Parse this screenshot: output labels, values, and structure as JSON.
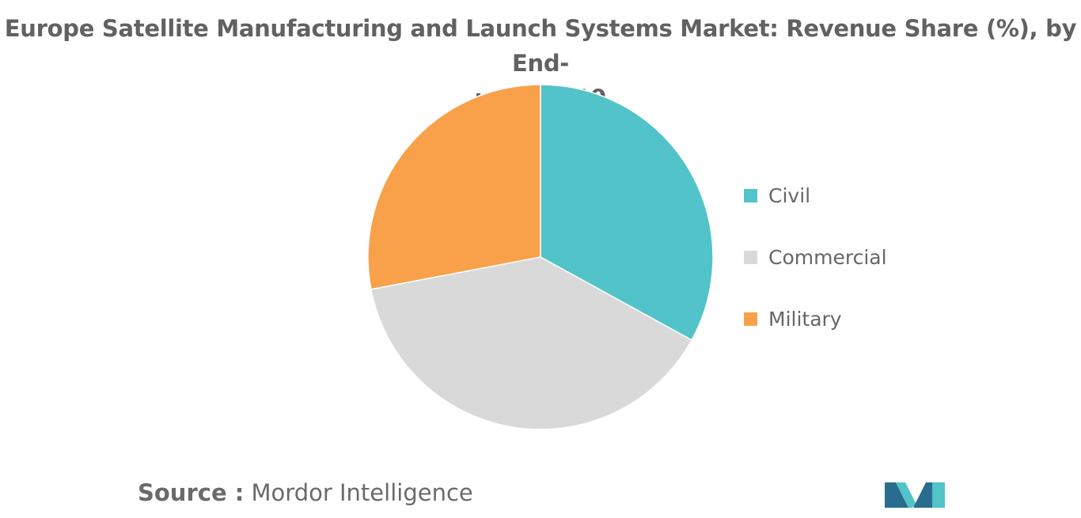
{
  "chart_data": {
    "type": "pie",
    "title_lines": [
      "Europe Satellite Manufacturing and Launch Systems Market: Revenue Share (%), by End-",
      "user, 2019"
    ],
    "slices": [
      {
        "label": "Civil",
        "value": 33,
        "color": "#52c3c8"
      },
      {
        "label": "Commercial",
        "value": 39,
        "color": "#d9d9d9"
      },
      {
        "label": "Military",
        "value": 28,
        "color": "#f9a14a"
      }
    ],
    "legend_position": "right"
  },
  "source": {
    "label": "Source :",
    "text": "Mordor Intelligence"
  },
  "logo": {
    "icon": "mordor-intelligence-logo-icon",
    "colors": [
      "#2a6c8f",
      "#52c3c8"
    ]
  }
}
